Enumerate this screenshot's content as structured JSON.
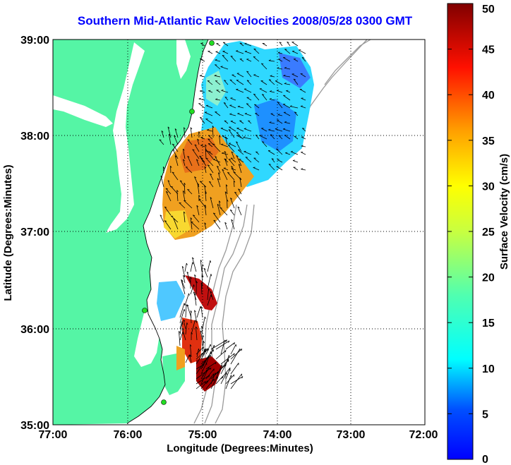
{
  "title": "Southern Mid-Atlantic Raw Velocities 2008/05/28 0300 GMT",
  "axes": {
    "xlabel": "Longitude (Degrees:Minutes)",
    "ylabel": "Latitude (Degrees:Minutes)",
    "x_ticks": [
      "77:00",
      "76:00",
      "75:00",
      "74:00",
      "73:00",
      "72:00"
    ],
    "y_ticks": [
      "39:00",
      "38:00",
      "37:00",
      "36:00",
      "35:00"
    ]
  },
  "colorbar": {
    "label": "Surface Velocity (cm/s)",
    "ticks": [
      "0",
      "5",
      "10",
      "15",
      "20",
      "25",
      "30",
      "35",
      "40",
      "45",
      "50"
    ],
    "range": [
      0,
      50
    ],
    "colormap": "jet"
  },
  "colors": {
    "land": "#55f5a5",
    "title": "#0000ff",
    "bathymetry": "#9a9a9a",
    "station": "#22dd22"
  },
  "chart_data": {
    "type": "heatmap",
    "x_range_deg_west": [
      77,
      72
    ],
    "y_range_deg_north": [
      35,
      39
    ],
    "grid": "dotted",
    "regions": [
      {
        "name": "northern",
        "velocity_cm_s": [
          5,
          15
        ]
      },
      {
        "name": "central",
        "velocity_cm_s": [
          20,
          35
        ]
      },
      {
        "name": "southern",
        "velocity_cm_s": [
          30,
          50
        ]
      }
    ]
  }
}
